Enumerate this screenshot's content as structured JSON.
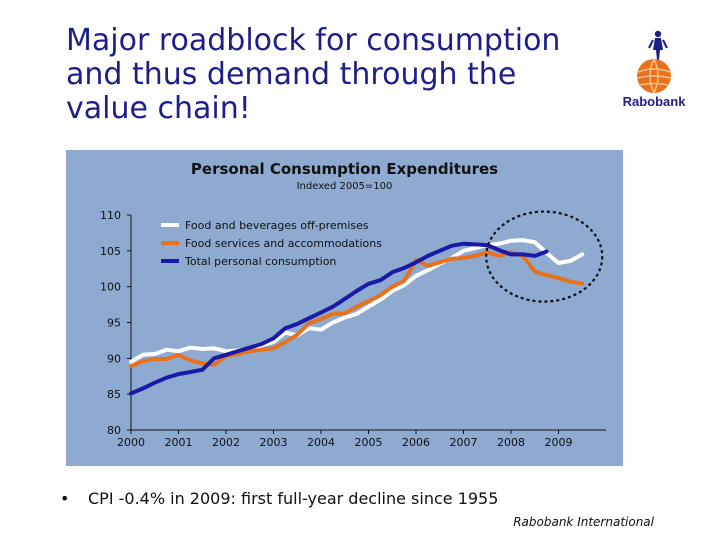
{
  "title_lines": [
    "Major roadblock for consumption",
    "and thus demand through the",
    "value chain!"
  ],
  "logo": {
    "text": "Rabobank",
    "icon": "rabobank-logo-icon"
  },
  "bullet": {
    "marker": "•",
    "text": "CPI -0.4% in 2009: first full-year decline since 1955"
  },
  "footer": "Rabobank International",
  "colors": {
    "background": "#8eaad0",
    "food_bev": "#ffffff",
    "food_services": "#e8711c",
    "total": "#1a1aa6",
    "title_text": "#1b1f8a"
  },
  "chart_data": {
    "type": "line",
    "title": "Personal Consumption Expenditures",
    "subtitle": "Indexed 2005=100",
    "xlabel": "",
    "ylabel": "",
    "xlim": [
      2000,
      2010
    ],
    "ylim": [
      80,
      110
    ],
    "x_ticks": [
      "2000",
      "2001",
      "2002",
      "2003",
      "2004",
      "2005",
      "2006",
      "2007",
      "2008",
      "2009"
    ],
    "y_ticks": [
      "80",
      "85",
      "90",
      "95",
      "100",
      "105",
      "110"
    ],
    "grid": false,
    "legend_position": "top-left",
    "annotation": "dashed ellipse highlighting 2008-2009",
    "series": [
      {
        "name": "Food and beverages off-premises",
        "color": "#ffffff",
        "points": [
          [
            2000.0,
            89.5
          ],
          [
            2000.25,
            90.5
          ],
          [
            2000.5,
            90.6
          ],
          [
            2000.75,
            91.2
          ],
          [
            2001.0,
            91.0
          ],
          [
            2001.25,
            91.5
          ],
          [
            2001.5,
            91.3
          ],
          [
            2001.75,
            91.4
          ],
          [
            2002.0,
            91.0
          ],
          [
            2002.25,
            91.1
          ],
          [
            2002.5,
            91.3
          ],
          [
            2002.75,
            91.8
          ],
          [
            2003.0,
            92.3
          ],
          [
            2003.25,
            93.6
          ],
          [
            2003.5,
            93.2
          ],
          [
            2003.75,
            94.2
          ],
          [
            2004.0,
            94.0
          ],
          [
            2004.25,
            95.0
          ],
          [
            2004.5,
            95.7
          ],
          [
            2004.75,
            96.2
          ],
          [
            2005.0,
            97.2
          ],
          [
            2005.25,
            98.2
          ],
          [
            2005.5,
            99.4
          ],
          [
            2005.75,
            100.2
          ],
          [
            2006.0,
            101.5
          ],
          [
            2006.25,
            102.3
          ],
          [
            2006.5,
            103.2
          ],
          [
            2006.75,
            104.0
          ],
          [
            2007.0,
            105.0
          ],
          [
            2007.25,
            105.4
          ],
          [
            2007.5,
            105.8
          ],
          [
            2007.75,
            106.0
          ],
          [
            2008.0,
            106.4
          ],
          [
            2008.25,
            106.5
          ],
          [
            2008.5,
            106.2
          ],
          [
            2008.75,
            104.7
          ],
          [
            2009.0,
            103.3
          ],
          [
            2009.25,
            103.6
          ],
          [
            2009.5,
            104.5
          ]
        ]
      },
      {
        "name": "Food services and accommodations",
        "color": "#e8711c",
        "points": [
          [
            2000.0,
            88.9
          ],
          [
            2000.25,
            89.6
          ],
          [
            2000.5,
            89.9
          ],
          [
            2000.75,
            89.9
          ],
          [
            2001.0,
            90.5
          ],
          [
            2001.25,
            89.7
          ],
          [
            2001.5,
            89.3
          ],
          [
            2001.75,
            89.1
          ],
          [
            2002.0,
            90.3
          ],
          [
            2002.25,
            90.6
          ],
          [
            2002.5,
            91.0
          ],
          [
            2002.75,
            91.2
          ],
          [
            2003.0,
            91.4
          ],
          [
            2003.25,
            92.3
          ],
          [
            2003.5,
            93.3
          ],
          [
            2003.75,
            94.9
          ],
          [
            2004.0,
            95.5
          ],
          [
            2004.25,
            96.2
          ],
          [
            2004.5,
            96.3
          ],
          [
            2004.75,
            97.2
          ],
          [
            2005.0,
            98.0
          ],
          [
            2005.25,
            98.8
          ],
          [
            2005.5,
            100.0
          ],
          [
            2005.75,
            100.8
          ],
          [
            2006.0,
            103.7
          ],
          [
            2006.25,
            102.9
          ],
          [
            2006.5,
            103.4
          ],
          [
            2006.75,
            103.9
          ],
          [
            2007.0,
            104.0
          ],
          [
            2007.25,
            104.3
          ],
          [
            2007.5,
            104.8
          ],
          [
            2007.75,
            104.3
          ],
          [
            2008.0,
            104.8
          ],
          [
            2008.25,
            104.3
          ],
          [
            2008.5,
            102.1
          ],
          [
            2008.75,
            101.6
          ],
          [
            2009.0,
            101.2
          ],
          [
            2009.25,
            100.7
          ],
          [
            2009.5,
            100.4
          ]
        ]
      },
      {
        "name": "Total personal consumption",
        "color": "#1a1aa6",
        "points": [
          [
            2000.0,
            85.1
          ],
          [
            2000.25,
            85.8
          ],
          [
            2000.5,
            86.6
          ],
          [
            2000.75,
            87.3
          ],
          [
            2001.0,
            87.8
          ],
          [
            2001.25,
            88.1
          ],
          [
            2001.5,
            88.4
          ],
          [
            2001.75,
            90.0
          ],
          [
            2002.0,
            90.5
          ],
          [
            2002.25,
            91.0
          ],
          [
            2002.5,
            91.5
          ],
          [
            2002.75,
            92.0
          ],
          [
            2003.0,
            92.8
          ],
          [
            2003.25,
            94.2
          ],
          [
            2003.5,
            94.8
          ],
          [
            2003.75,
            95.6
          ],
          [
            2004.0,
            96.4
          ],
          [
            2004.25,
            97.2
          ],
          [
            2004.5,
            98.3
          ],
          [
            2004.75,
            99.4
          ],
          [
            2005.0,
            100.4
          ],
          [
            2005.25,
            100.9
          ],
          [
            2005.5,
            102.0
          ],
          [
            2005.75,
            102.6
          ],
          [
            2006.0,
            103.4
          ],
          [
            2006.25,
            104.3
          ],
          [
            2006.5,
            105.0
          ],
          [
            2006.75,
            105.7
          ],
          [
            2007.0,
            106.0
          ],
          [
            2007.25,
            105.9
          ],
          [
            2007.5,
            105.8
          ],
          [
            2007.75,
            105.1
          ],
          [
            2008.0,
            104.5
          ],
          [
            2008.25,
            104.5
          ],
          [
            2008.5,
            104.3
          ],
          [
            2008.75,
            104.9
          ]
        ]
      }
    ]
  }
}
